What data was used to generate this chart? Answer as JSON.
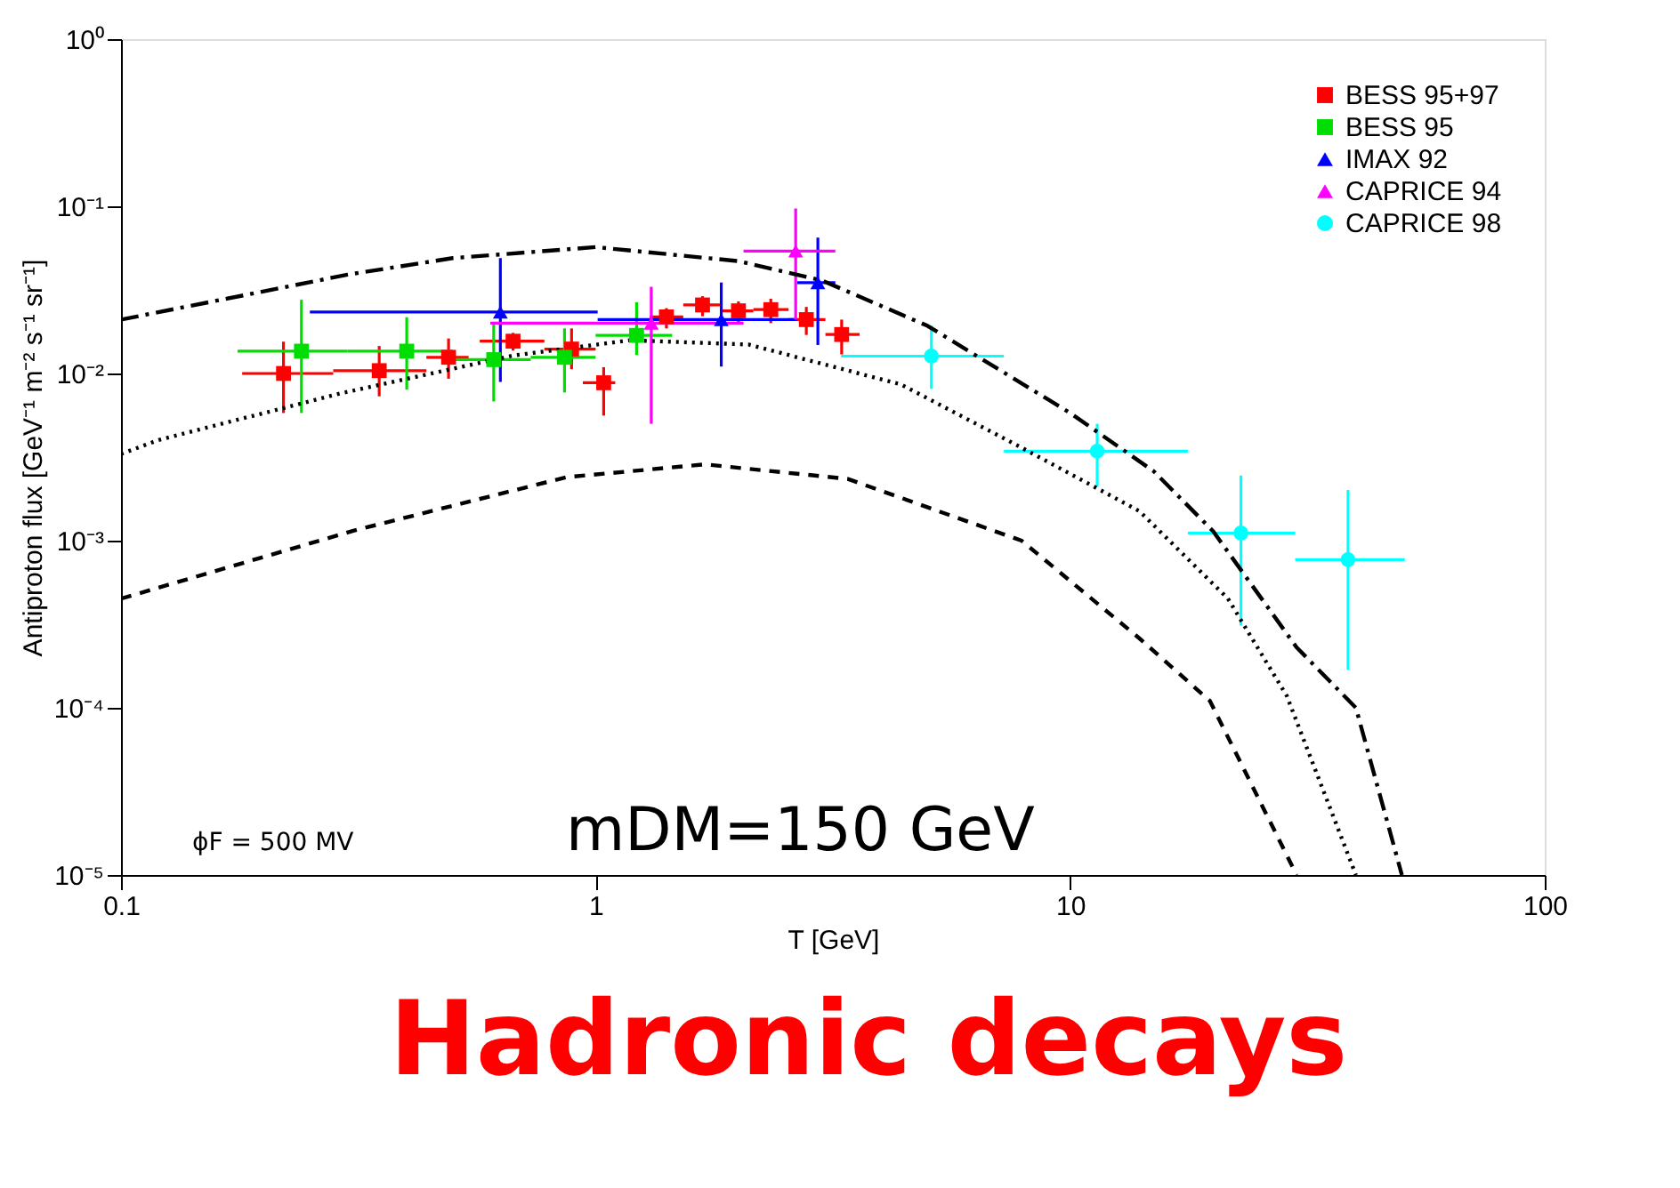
{
  "chart_data": {
    "type": "scatter",
    "xlabel": "T [GeV]",
    "ylabel": "Antiproton flux [GeV⁻¹ m⁻² s⁻¹ sr⁻¹]",
    "log": "xy",
    "xlim": [
      0.1,
      100
    ],
    "ylim": [
      1e-05,
      1
    ],
    "xticks": [
      0.1,
      1,
      10,
      100
    ],
    "yticks": [
      {
        "value": 1e-05,
        "label": "10⁻⁵"
      },
      {
        "value": 0.0001,
        "label": "10⁻⁴"
      },
      {
        "value": 0.001,
        "label": "10⁻³"
      },
      {
        "value": 0.01,
        "label": "10⁻²"
      },
      {
        "value": 0.1,
        "label": "10⁻¹"
      },
      {
        "value": 1,
        "label": "10⁰"
      }
    ],
    "grid": false,
    "legend": "top right",
    "annotations": [
      "ϕF = 500 MV",
      "mDM=150 GeV",
      "Hadronic decays"
    ],
    "series": [
      {
        "name": "BESS 95+97",
        "color": "#ff0000",
        "marker": "square",
        "x": [
          0.22,
          0.35,
          0.49,
          0.67,
          0.89,
          1.04,
          1.41,
          1.68,
          2.0,
          2.34,
          2.78,
          3.3
        ],
        "values": [
          0.01,
          0.0104,
          0.0125,
          0.0156,
          0.014,
          0.0088,
          0.0218,
          0.0257,
          0.0237,
          0.0241,
          0.021,
          0.0171
        ],
        "errors": [
          [
            0.0058,
            0.0155
          ],
          [
            0.0073,
            0.0146
          ],
          [
            0.0093,
            0.0162
          ],
          [
            0.0137,
            0.0175
          ],
          [
            0.0106,
            0.0186
          ],
          [
            0.0056,
            0.0109
          ],
          [
            0.0186,
            0.0246
          ],
          [
            0.022,
            0.029
          ],
          [
            0.02,
            0.027
          ],
          [
            0.02,
            0.028
          ],
          [
            0.017,
            0.025
          ],
          [
            0.013,
            0.021
          ]
        ],
        "xerrors": [
          [
            0.18,
            0.28
          ],
          [
            0.28,
            0.44
          ],
          [
            0.44,
            0.54
          ],
          [
            0.57,
            0.78
          ],
          [
            0.78,
            1.0
          ],
          [
            0.94,
            1.1
          ],
          [
            1.3,
            1.53
          ],
          [
            1.53,
            1.85
          ],
          [
            1.85,
            2.15
          ],
          [
            2.15,
            2.55
          ],
          [
            2.55,
            3.05
          ],
          [
            3.05,
            3.6
          ]
        ]
      },
      {
        "name": "BESS 95",
        "color": "#00dd00",
        "marker": "square",
        "x": [
          0.24,
          0.4,
          0.61,
          0.86,
          1.22
        ],
        "values": [
          0.0136,
          0.0136,
          0.0121,
          0.0125,
          0.0169
        ],
        "errors": [
          [
            0.0058,
            0.0276
          ],
          [
            0.008,
            0.0217
          ],
          [
            0.0068,
            0.02
          ],
          [
            0.0077,
            0.0186
          ],
          [
            0.0129,
            0.0267
          ]
        ],
        "xerrors": [
          [
            0.176,
            0.3
          ],
          [
            0.3,
            0.5
          ],
          [
            0.5,
            0.73
          ],
          [
            0.73,
            1.0
          ],
          [
            1.0,
            1.45
          ]
        ]
      },
      {
        "name": "IMAX 92",
        "color": "#0000ff",
        "marker": "triangle",
        "x": [
          0.63,
          1.84,
          2.94
        ],
        "values": [
          0.0233,
          0.021,
          0.0349
        ],
        "errors": [
          [
            0.0089,
            0.049
          ],
          [
            0.011,
            0.035
          ],
          [
            0.0148,
            0.065
          ]
        ],
        "xerrors": [
          [
            0.25,
            1.01
          ],
          [
            1.01,
            2.66
          ],
          [
            2.66,
            3.2
          ]
        ]
      },
      {
        "name": "CAPRICE 94",
        "color": "#ff00ff",
        "marker": "triangle",
        "x": [
          1.31,
          2.64
        ],
        "values": [
          0.02,
          0.054
        ],
        "errors": [
          [
            0.005,
            0.033
          ],
          [
            0.021,
            0.097
          ]
        ],
        "xerrors": [
          [
            0.6,
            2.05
          ],
          [
            2.05,
            3.2
          ]
        ]
      },
      {
        "name": "CAPRICE 98",
        "color": "#00ffff",
        "marker": "circle",
        "x": [
          5.1,
          11.4,
          22.9,
          38.5
        ],
        "values": [
          0.0127,
          0.00343,
          0.00111,
          0.00077
        ],
        "errors": [
          [
            0.0081,
            0.0193
          ],
          [
            0.0021,
            0.005
          ],
          [
            0.00031,
            0.00245
          ],
          [
            0.000169,
            0.00201
          ]
        ],
        "xerrors": [
          [
            3.29,
            7.25
          ],
          [
            7.25,
            17.7
          ],
          [
            17.7,
            29.8
          ],
          [
            29.8,
            50.7
          ]
        ]
      },
      {
        "type": "line",
        "color": "#000000",
        "line_style": "dashdot",
        "x": [
          0.1,
          0.2,
          0.3,
          0.5,
          1,
          2,
          3,
          5,
          10,
          15,
          20,
          30,
          40,
          50
        ],
        "values": [
          0.021,
          0.031,
          0.039,
          0.049,
          0.057,
          0.047,
          0.036,
          0.0193,
          0.0058,
          0.0026,
          0.00114,
          0.00023,
          0.0001,
          1e-05
        ]
      },
      {
        "type": "line",
        "color": "#000000",
        "line_style": "dotted",
        "x": [
          0.1,
          0.12,
          0.29,
          0.67,
          1.18,
          2.1,
          4.4,
          7.9,
          14,
          21.5,
          28.6,
          40
        ],
        "values": [
          0.0033,
          0.004,
          0.0076,
          0.0128,
          0.0158,
          0.0149,
          0.0086,
          0.0036,
          0.0015,
          0.00045,
          0.000118,
          1e-05
        ]
      },
      {
        "type": "line",
        "color": "#000000",
        "line_style": "dashed",
        "x": [
          0.1,
          0.31,
          0.87,
          1.7,
          3.4,
          7.9,
          14,
          19.7,
          30
        ],
        "values": [
          0.00045,
          0.00115,
          0.0024,
          0.00286,
          0.00234,
          0.001,
          0.00026,
          0.00011,
          1e-05
        ]
      }
    ]
  }
}
